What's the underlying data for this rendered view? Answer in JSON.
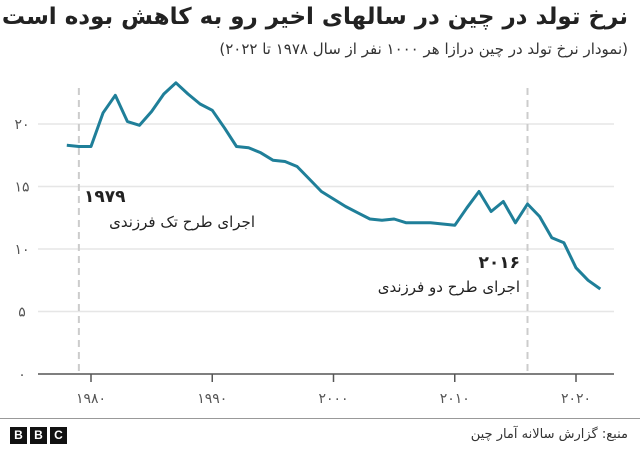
{
  "header": {
    "title": "نرخ تولد در چین در سالهای اخیر رو به کاهش بوده است",
    "subtitle": "(نمودار نرخ تولد در چین درازا هر ۱۰۰۰ نفر از سال ۱۹۷۸ تا ۲۰۲۲)"
  },
  "annotations": [
    {
      "year_label": "۱۹۷۹",
      "text": "اجرای طرح تک فرزندی",
      "x": 1979
    },
    {
      "year_label": "۲۰۱۶",
      "text": "اجرای طرح دو فرزندی",
      "x": 2016
    }
  ],
  "footer": {
    "source": "منبع: گزارش سالانه آمار چین",
    "logo": [
      "B",
      "B",
      "C"
    ]
  },
  "colors": {
    "line": "#1f7f99",
    "grid": "#e6e6e6",
    "axis": "#555555",
    "marker": "#cccccc"
  },
  "chart_data": {
    "type": "line",
    "title": "نرخ تولد در چین در سالهای اخیر رو به کاهش بوده است",
    "subtitle": "(نمودار نرخ تولد در چین درازا هر ۱۰۰۰ نفر از سال ۱۹۷۸ تا ۲۰۲۲)",
    "xlabel": "",
    "ylabel": "",
    "x": [
      1978,
      1979,
      1980,
      1981,
      1982,
      1983,
      1984,
      1985,
      1986,
      1987,
      1988,
      1989,
      1990,
      1991,
      1992,
      1993,
      1994,
      1995,
      1996,
      1997,
      1998,
      1999,
      2000,
      2001,
      2002,
      2003,
      2004,
      2005,
      2006,
      2007,
      2008,
      2009,
      2010,
      2011,
      2012,
      2013,
      2014,
      2015,
      2016,
      2017,
      2018,
      2019,
      2020,
      2021,
      2022
    ],
    "series": [
      {
        "name": "نرخ تولد",
        "values": [
          18.3,
          18.2,
          18.2,
          20.9,
          22.3,
          20.2,
          19.9,
          21.0,
          22.4,
          23.3,
          22.4,
          21.6,
          21.1,
          19.7,
          18.2,
          18.1,
          17.7,
          17.1,
          17.0,
          16.6,
          15.6,
          14.6,
          14.0,
          13.4,
          12.9,
          12.4,
          12.3,
          12.4,
          12.1,
          12.1,
          12.1,
          12.0,
          11.9,
          13.3,
          14.6,
          13.0,
          13.8,
          12.1,
          13.6,
          12.6,
          10.9,
          10.5,
          8.5,
          7.5,
          6.8
        ]
      }
    ],
    "xticks": [
      "۱۹۸۰",
      "۱۹۹۰",
      "۲۰۰۰",
      "۲۰۱۰",
      "۲۰۲۰"
    ],
    "xtick_values": [
      1980,
      1990,
      2000,
      2010,
      2020
    ],
    "yticks": [
      "۰",
      "۵",
      "۱۰",
      "۱۵",
      "۲۰"
    ],
    "ytick_values": [
      0,
      5,
      10,
      15,
      20
    ],
    "ylim": [
      0,
      24
    ],
    "xlim": [
      1976,
      2024
    ],
    "grid": true,
    "legend": "none",
    "annotations": [
      {
        "x": 1979,
        "label": "۱۹۷۹ اجرای طرح تک فرزندی"
      },
      {
        "x": 2016,
        "label": "۲۰۱۶ اجرای طرح دو فرزندی"
      }
    ]
  }
}
